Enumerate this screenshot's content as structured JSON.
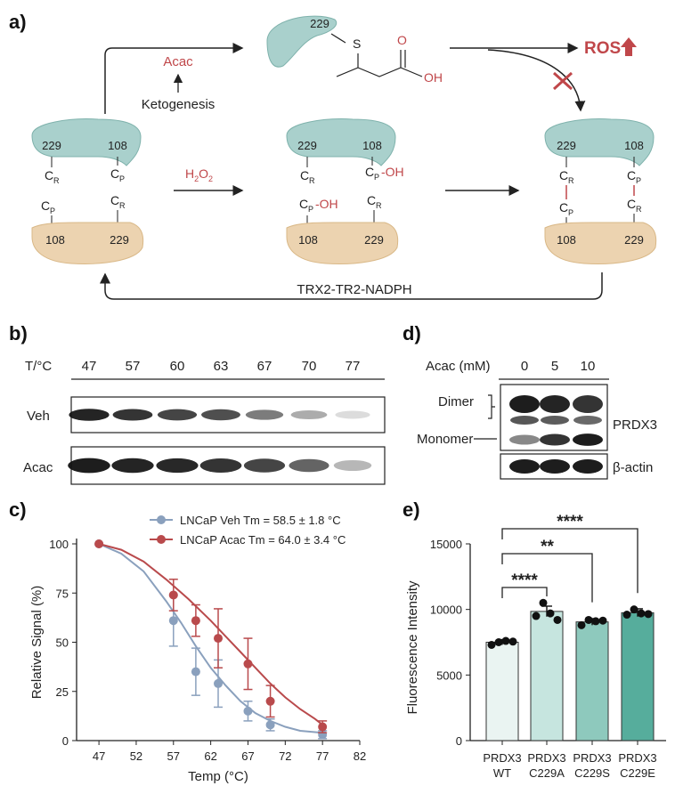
{
  "panels": {
    "a": "a)",
    "b": "b)",
    "c": "c)",
    "d": "d)",
    "e": "e)"
  },
  "panel_a": {
    "acac": "Acac",
    "ketogenesis": "Ketogenesis",
    "h2o2": "H2O2",
    "ros": "ROS",
    "trx": "TRX2-TR2-NADPH",
    "res229": "229",
    "res108": "108",
    "cr": "C",
    "cp": "C",
    "sub_r": "R",
    "sub_p": "P",
    "oh": "-OH",
    "adduct_s": "S",
    "adduct_o": "O",
    "adduct_oh": "OH",
    "colors": {
      "teal": "#a9d0cc",
      "tan": "#ecd3b0",
      "red": "#c0474a"
    }
  },
  "panel_b": {
    "header": "T/°C",
    "temps": [
      "47",
      "57",
      "60",
      "63",
      "67",
      "70",
      "77"
    ],
    "rows": [
      "Veh",
      "Acac"
    ],
    "veh_intensity": [
      0.92,
      0.85,
      0.78,
      0.74,
      0.55,
      0.35,
      0.15
    ],
    "acac_intensity": [
      0.95,
      0.92,
      0.9,
      0.85,
      0.78,
      0.65,
      0.3
    ]
  },
  "panel_d": {
    "header": "Acac (mM)",
    "doses": [
      "0",
      "5",
      "10"
    ],
    "dimer": "Dimer",
    "monomer": "Monomer",
    "prdx3": "PRDX3",
    "actin": "β-actin"
  },
  "chart_data": [
    {
      "type": "line",
      "xlabel": "Temp (°C)",
      "ylabel": "Relative Signal (%)",
      "xlim": [
        44,
        82
      ],
      "ylim": [
        0,
        100
      ],
      "xticks": [
        "47",
        "52",
        "57",
        "62",
        "67",
        "72",
        "77",
        "82"
      ],
      "yticks": [
        "0",
        "25",
        "50",
        "75",
        "100"
      ],
      "legend_position": "top",
      "series": [
        {
          "name": "LNCaP Veh Tm = 58.5 ± 1.8 °C",
          "color": "#8aa0bd",
          "x": [
            47,
            57,
            60,
            63,
            67,
            70,
            77
          ],
          "y": [
            100,
            61,
            35,
            29,
            15,
            8,
            3
          ],
          "err": [
            0,
            13,
            12,
            12,
            5,
            3,
            2
          ],
          "curve": [
            [
              47,
              100
            ],
            [
              50,
              95
            ],
            [
              53,
              86
            ],
            [
              56,
              71
            ],
            [
              58,
              60
            ],
            [
              60,
              48
            ],
            [
              62,
              37
            ],
            [
              64,
              28
            ],
            [
              66,
              20
            ],
            [
              68,
              14
            ],
            [
              70,
              10
            ],
            [
              72,
              7
            ],
            [
              74,
              5
            ],
            [
              77,
              4
            ]
          ]
        },
        {
          "name": "LNCaP Acac Tm = 64.0 ± 3.4 °C",
          "color": "#b94a4c",
          "x": [
            47,
            57,
            60,
            63,
            67,
            70,
            77
          ],
          "y": [
            100,
            74,
            61,
            52,
            39,
            20,
            7
          ],
          "err": [
            0,
            8,
            8,
            15,
            13,
            8,
            3
          ],
          "curve": [
            [
              47,
              100
            ],
            [
              50,
              97
            ],
            [
              53,
              91
            ],
            [
              56,
              82
            ],
            [
              59,
              72
            ],
            [
              62,
              61
            ],
            [
              64,
              53
            ],
            [
              66,
              45
            ],
            [
              68,
              37
            ],
            [
              70,
              29
            ],
            [
              72,
              22
            ],
            [
              74,
              16
            ],
            [
              76,
              11
            ],
            [
              77,
              8
            ]
          ]
        }
      ]
    },
    {
      "type": "bar",
      "ylabel": "Fluorescence Intensity",
      "ylim": [
        0,
        15000
      ],
      "yticks": [
        "0",
        "5000",
        "10000",
        "15000"
      ],
      "categories": [
        "PRDX3 WT",
        "PRDX3 C229A",
        "PRDX3 C229S",
        "PRDX3 C229E"
      ],
      "cat_line1": [
        "PRDX3",
        "PRDX3",
        "PRDX3",
        "PRDX3"
      ],
      "cat_line2": [
        "WT",
        "C229A",
        "C229S",
        "C229E"
      ],
      "values": [
        7500,
        9850,
        9050,
        9750
      ],
      "errors": [
        200,
        400,
        250,
        300
      ],
      "colors": [
        "#eaf4f2",
        "#c6e5df",
        "#8ec9bd",
        "#56ad9c"
      ],
      "points": [
        [
          7300,
          7500,
          7600,
          7550
        ],
        [
          9500,
          10500,
          9700,
          9200
        ],
        [
          8800,
          9200,
          9100,
          9150
        ],
        [
          9600,
          10000,
          9700,
          9650
        ]
      ],
      "significance": [
        "****",
        "**",
        "****"
      ]
    }
  ]
}
